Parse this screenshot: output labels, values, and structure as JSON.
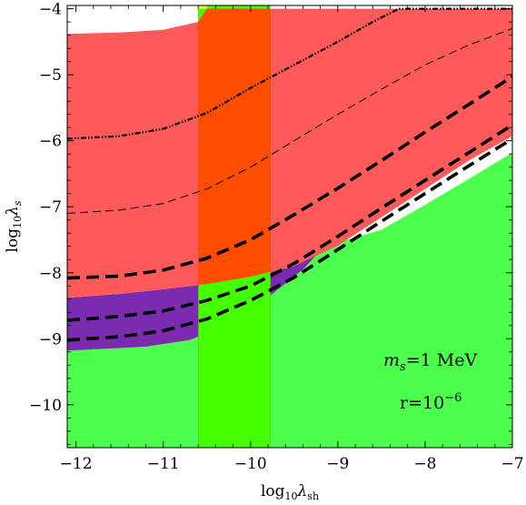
{
  "chart_data": {
    "type": "area",
    "xlabel": {
      "base": "log",
      "sub": "10",
      "var": "λ",
      "varsub": "sh"
    },
    "ylabel": {
      "base": "log",
      "sub": "10",
      "var": "λ",
      "varsub": "s"
    },
    "xlim": [
      -12.1,
      -7.0
    ],
    "ylim": [
      -10.65,
      -3.95
    ],
    "x_ticks": [
      -12,
      -11,
      -10,
      -9,
      -8,
      -7
    ],
    "y_ticks": [
      -10,
      -9,
      -8,
      -7,
      -6,
      -5,
      -4
    ],
    "x_tick_labels": [
      "−12",
      "−11",
      "−10",
      "−9",
      "−8",
      "−7"
    ],
    "y_tick_labels": [
      "−10",
      "−9",
      "−8",
      "−7",
      "−6",
      "−5",
      "−4"
    ],
    "annotations": {
      "mass": {
        "var": "m",
        "sub": "s",
        "text": "=1 MeV"
      },
      "ratio": {
        "text": "r=10",
        "sup": "−6"
      }
    },
    "colors": {
      "red": "#ff5a5a",
      "green": "#4cff4c",
      "purple": "#7a2bb0",
      "orange": "#ff4d00",
      "lime": "#44ff00",
      "yellow": "#e8ff3a"
    },
    "regions": {
      "red_upper": [
        [
          -12.1,
          -4.38
        ],
        [
          -11.5,
          -4.36
        ],
        [
          -11,
          -4.32
        ],
        [
          -10.6,
          -4.2
        ],
        [
          -10.5,
          -4.0
        ],
        [
          -7.0,
          -4.0
        ],
        [
          -7.0,
          -5.93
        ],
        [
          -7.5,
          -6.3
        ],
        [
          -8.0,
          -6.73
        ],
        [
          -8.5,
          -7.16
        ],
        [
          -9.0,
          -7.59
        ],
        [
          -9.5,
          -7.9
        ],
        [
          -10.0,
          -8.06
        ],
        [
          -10.5,
          -8.17
        ],
        [
          -11.0,
          -8.25
        ],
        [
          -11.5,
          -8.32
        ],
        [
          -12.1,
          -8.38
        ]
      ],
      "purple_band": [
        [
          -12.1,
          -8.38
        ],
        [
          -11.5,
          -8.32
        ],
        [
          -11.0,
          -8.25
        ],
        [
          -10.5,
          -8.17
        ],
        [
          -10.0,
          -8.06
        ],
        [
          -9.5,
          -7.9
        ],
        [
          -9.15,
          -7.6
        ],
        [
          -9.4,
          -7.95
        ],
        [
          -9.9,
          -8.48
        ],
        [
          -10.3,
          -8.82
        ],
        [
          -10.7,
          -9.02
        ],
        [
          -11.2,
          -9.12
        ],
        [
          -12.1,
          -9.18
        ]
      ],
      "green_lower": [
        [
          -12.1,
          -9.18
        ],
        [
          -11.2,
          -9.12
        ],
        [
          -10.7,
          -9.02
        ],
        [
          -10.3,
          -8.82
        ],
        [
          -9.9,
          -8.48
        ],
        [
          -9.4,
          -7.95
        ],
        [
          -9.15,
          -7.6
        ],
        [
          -8.5,
          -7.35
        ],
        [
          -8.0,
          -6.97
        ],
        [
          -7.5,
          -6.58
        ],
        [
          -7.0,
          -6.18
        ],
        [
          -7.0,
          -10.65
        ],
        [
          -12.1,
          -10.65
        ]
      ],
      "vertical_band": {
        "x_from": -10.6,
        "x_to": -9.77
      },
      "yellow_sliver": {
        "x_from": -10.6,
        "x_to": -10.5,
        "y_from": -4.0,
        "y_to": -3.95
      }
    },
    "series": [
      {
        "style": "dash-dot-dot",
        "x": [
          -12.1,
          -11.5,
          -11.0,
          -10.5,
          -10.0,
          -9.5,
          -9.0,
          -8.6,
          -8.3,
          -8.0,
          -7.5,
          -7.0
        ],
        "y": [
          -5.97,
          -5.93,
          -5.82,
          -5.58,
          -5.2,
          -4.85,
          -4.5,
          -4.2,
          -4.0,
          -4.0,
          -4.0,
          -4.0
        ]
      },
      {
        "style": "thin-dash",
        "x": [
          -12.1,
          -11.5,
          -11.0,
          -10.5,
          -10.0,
          -9.5,
          -9.0,
          -8.5,
          -8.0,
          -7.5,
          -7.0
        ],
        "y": [
          -7.1,
          -7.05,
          -6.95,
          -6.73,
          -6.4,
          -6.0,
          -5.6,
          -5.22,
          -4.85,
          -4.55,
          -4.3
        ]
      },
      {
        "style": "thick-dash",
        "x": [
          -12.1,
          -11.5,
          -11.0,
          -10.5,
          -10.0,
          -9.5,
          -9.0,
          -8.5,
          -8.0,
          -7.5,
          -7.0
        ],
        "y": [
          -8.08,
          -8.05,
          -7.96,
          -7.78,
          -7.5,
          -7.12,
          -6.72,
          -6.3,
          -5.87,
          -5.45,
          -5.03
        ]
      },
      {
        "style": "thick-dash",
        "x": [
          -12.1,
          -11.5,
          -11.0,
          -10.5,
          -10.0,
          -9.5,
          -9.0,
          -8.5,
          -8.0,
          -7.5,
          -7.0
        ],
        "y": [
          -8.72,
          -8.66,
          -8.58,
          -8.42,
          -8.2,
          -7.86,
          -7.45,
          -7.02,
          -6.6,
          -6.18,
          -5.76
        ]
      },
      {
        "style": "thick-dash",
        "x": [
          -12.1,
          -11.5,
          -11.0,
          -10.5,
          -10.0,
          -9.5,
          -9.0,
          -8.5,
          -8.0,
          -7.5,
          -7.0
        ],
        "y": [
          -9.02,
          -8.97,
          -8.88,
          -8.7,
          -8.42,
          -8.07,
          -7.65,
          -7.22,
          -6.8,
          -6.38,
          -5.97
        ]
      }
    ]
  }
}
